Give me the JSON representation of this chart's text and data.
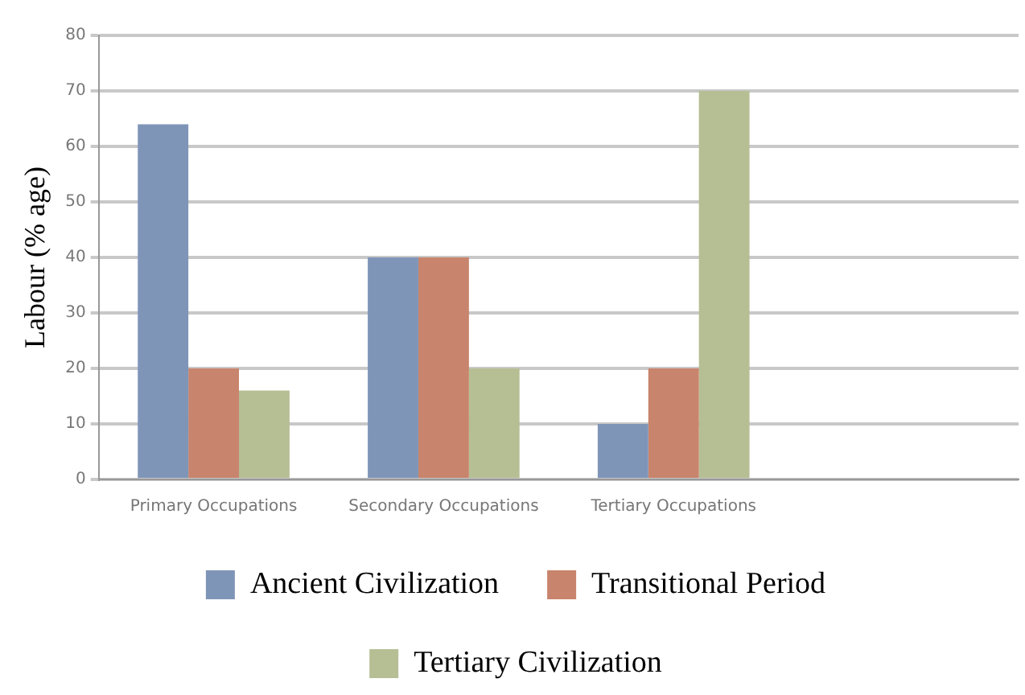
{
  "chart_data": {
    "type": "bar",
    "ylabel": "Labour (% age)",
    "categories": [
      "Primary Occupations",
      "Secondary Occupations",
      "Tertiary Occupations",
      null
    ],
    "series": [
      {
        "name": "Ancient Civilization",
        "color": "#7f95b8",
        "values": [
          64,
          40,
          10,
          null
        ]
      },
      {
        "name": "Transitional Period",
        "color": "#c8846c",
        "values": [
          20,
          40,
          20,
          null
        ]
      },
      {
        "name": "Tertiary Civilization",
        "color": "#b6be94",
        "values": [
          16,
          20,
          70,
          null
        ]
      }
    ],
    "ylim": [
      0,
      80
    ],
    "yticks": [
      0,
      10,
      20,
      30,
      40,
      50,
      60,
      70,
      80
    ],
    "grid": "y",
    "legend": "bottom"
  }
}
